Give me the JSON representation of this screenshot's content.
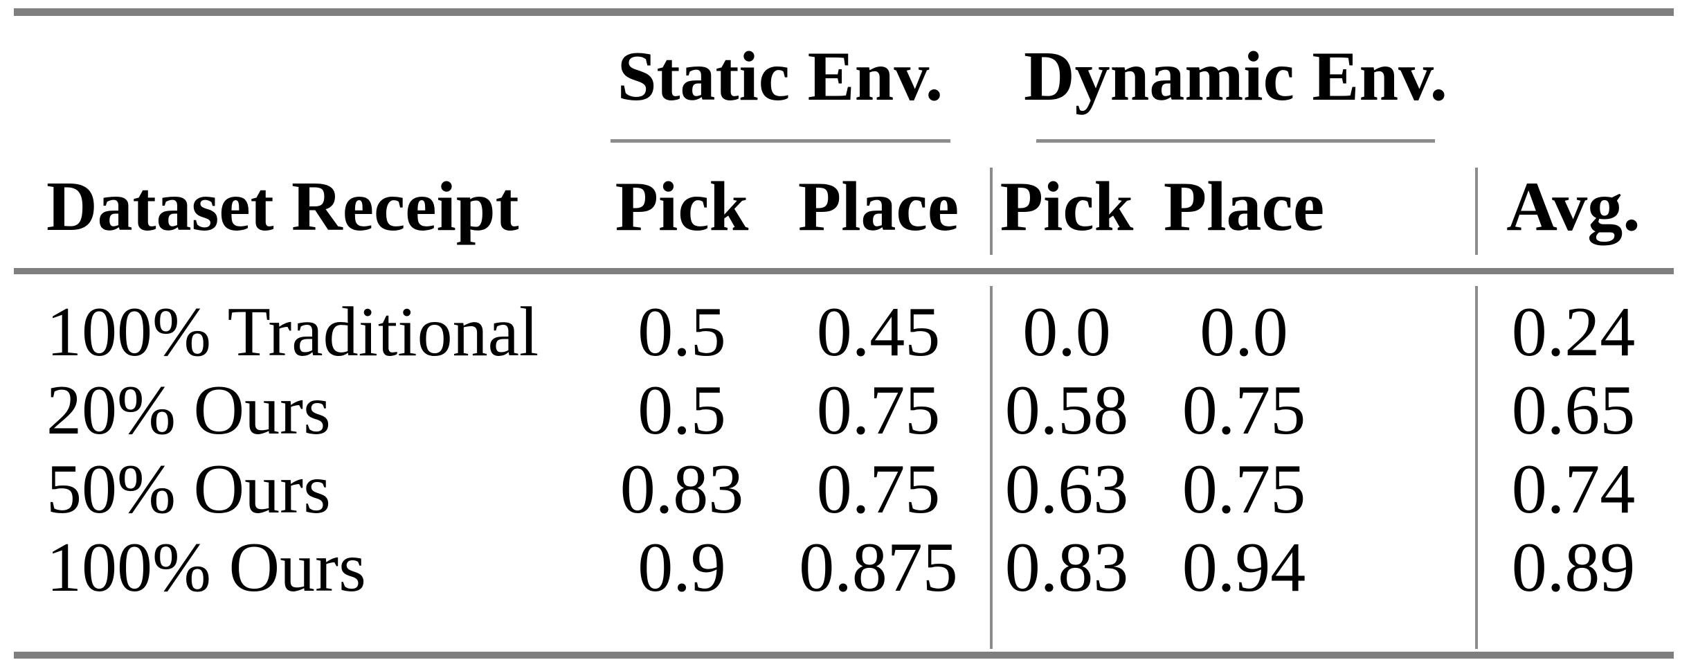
{
  "table": {
    "groups": [
      {
        "label": "Static Env."
      },
      {
        "label": "Dynamic Env."
      }
    ],
    "header": {
      "label_col": "Dataset Receipt",
      "columns": [
        "Pick",
        "Place",
        "Pick",
        "Place",
        "Avg."
      ]
    },
    "rows": [
      {
        "label": "100% Traditional",
        "values": [
          "0.5",
          "0.45",
          "0.0",
          "0.0",
          "0.24"
        ]
      },
      {
        "label": "20% Ours",
        "values": [
          "0.5",
          "0.75",
          "0.58",
          "0.75",
          "0.65"
        ]
      },
      {
        "label": "50% Ours",
        "values": [
          "0.83",
          "0.75",
          "0.63",
          "0.75",
          "0.74"
        ]
      },
      {
        "label": "100% Ours",
        "values": [
          "0.9",
          "0.875",
          "0.83",
          "0.94",
          "0.89"
        ]
      }
    ]
  },
  "colors": {
    "thick_rule_gray": "#7f7f7f",
    "thin_rule_gray": "#8c8c8c",
    "text": "#000000",
    "background": "#ffffff"
  },
  "chart_data": {
    "type": "table",
    "title": "",
    "column_groups": [
      "Static Env.",
      "Dynamic Env."
    ],
    "columns": [
      "Dataset Receipt",
      "Static Pick",
      "Static Place",
      "Dynamic Pick",
      "Dynamic Place",
      "Avg."
    ],
    "rows": [
      [
        "100% Traditional",
        0.5,
        0.45,
        0.0,
        0.0,
        0.24
      ],
      [
        "20% Ours",
        0.5,
        0.75,
        0.58,
        0.75,
        0.65
      ],
      [
        "50% Ours",
        0.83,
        0.75,
        0.63,
        0.75,
        0.74
      ],
      [
        "100% Ours",
        0.9,
        0.875,
        0.83,
        0.94,
        0.89
      ]
    ]
  }
}
